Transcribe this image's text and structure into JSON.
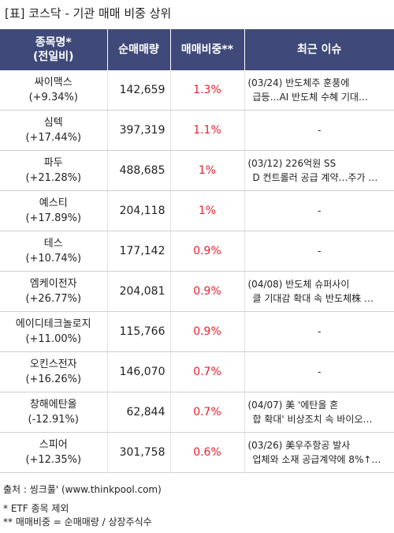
{
  "title": "[표] 코스닥 - 기관 매매 비중 상위",
  "headers": {
    "name_line1": "종목명*",
    "name_line2": "(전일비)",
    "volume": "순매매량",
    "ratio": "매매비중**",
    "issue": "최근 이슈"
  },
  "rows": [
    {
      "name": "싸이맥스",
      "change": "(+9.34%)",
      "volume": "142,659",
      "ratio": "1.3%",
      "issue1": "(03/24) 반도체주 훈풍에",
      "issue2": "급등…AI 반도체 수혜 기대…"
    },
    {
      "name": "심텍",
      "change": "(+17.44%)",
      "volume": "397,319",
      "ratio": "1.1%",
      "issue1": "-",
      "issue2": ""
    },
    {
      "name": "파두",
      "change": "(+21.28%)",
      "volume": "488,685",
      "ratio": "1%",
      "issue1": "(03/12) 226억원 SS",
      "issue2": "D 컨트롤러 공급 계약…주가 …"
    },
    {
      "name": "예스티",
      "change": "(+17.89%)",
      "volume": "204,118",
      "ratio": "1%",
      "issue1": "-",
      "issue2": ""
    },
    {
      "name": "테스",
      "change": "(+10.74%)",
      "volume": "177,142",
      "ratio": "0.9%",
      "issue1": "-",
      "issue2": ""
    },
    {
      "name": "엠케이전자",
      "change": "(+26.77%)",
      "volume": "204,081",
      "ratio": "0.9%",
      "issue1": "(04/08) 반도체 슈퍼사이",
      "issue2": "클 기대감 확대 속 반도체株 …"
    },
    {
      "name": "에이디테크놀로지",
      "change": "(+11.00%)",
      "volume": "115,766",
      "ratio": "0.9%",
      "issue1": "-",
      "issue2": ""
    },
    {
      "name": "오킨스전자",
      "change": "(+16.26%)",
      "volume": "146,070",
      "ratio": "0.7%",
      "issue1": "-",
      "issue2": ""
    },
    {
      "name": "창해에탄올",
      "change": "(-12.91%)",
      "volume": "62,844",
      "ratio": "0.7%",
      "issue1": "(04/07) 美 '에탄올 혼",
      "issue2": "합 확대' 비상조치 속 바이오…"
    },
    {
      "name": "스피어",
      "change": "(+12.35%)",
      "volume": "301,758",
      "ratio": "0.6%",
      "issue1": "(03/26) 美우주항공 발사",
      "issue2": "업체와 소재 공급계약에 8%↑…"
    }
  ],
  "footer": {
    "source": "출처 : 씽크풀' (www.thinkpool.com)",
    "note1": "* ETF 종목 제외",
    "note2": "** 매매비중 = 순매매량 / 상장주식수"
  }
}
